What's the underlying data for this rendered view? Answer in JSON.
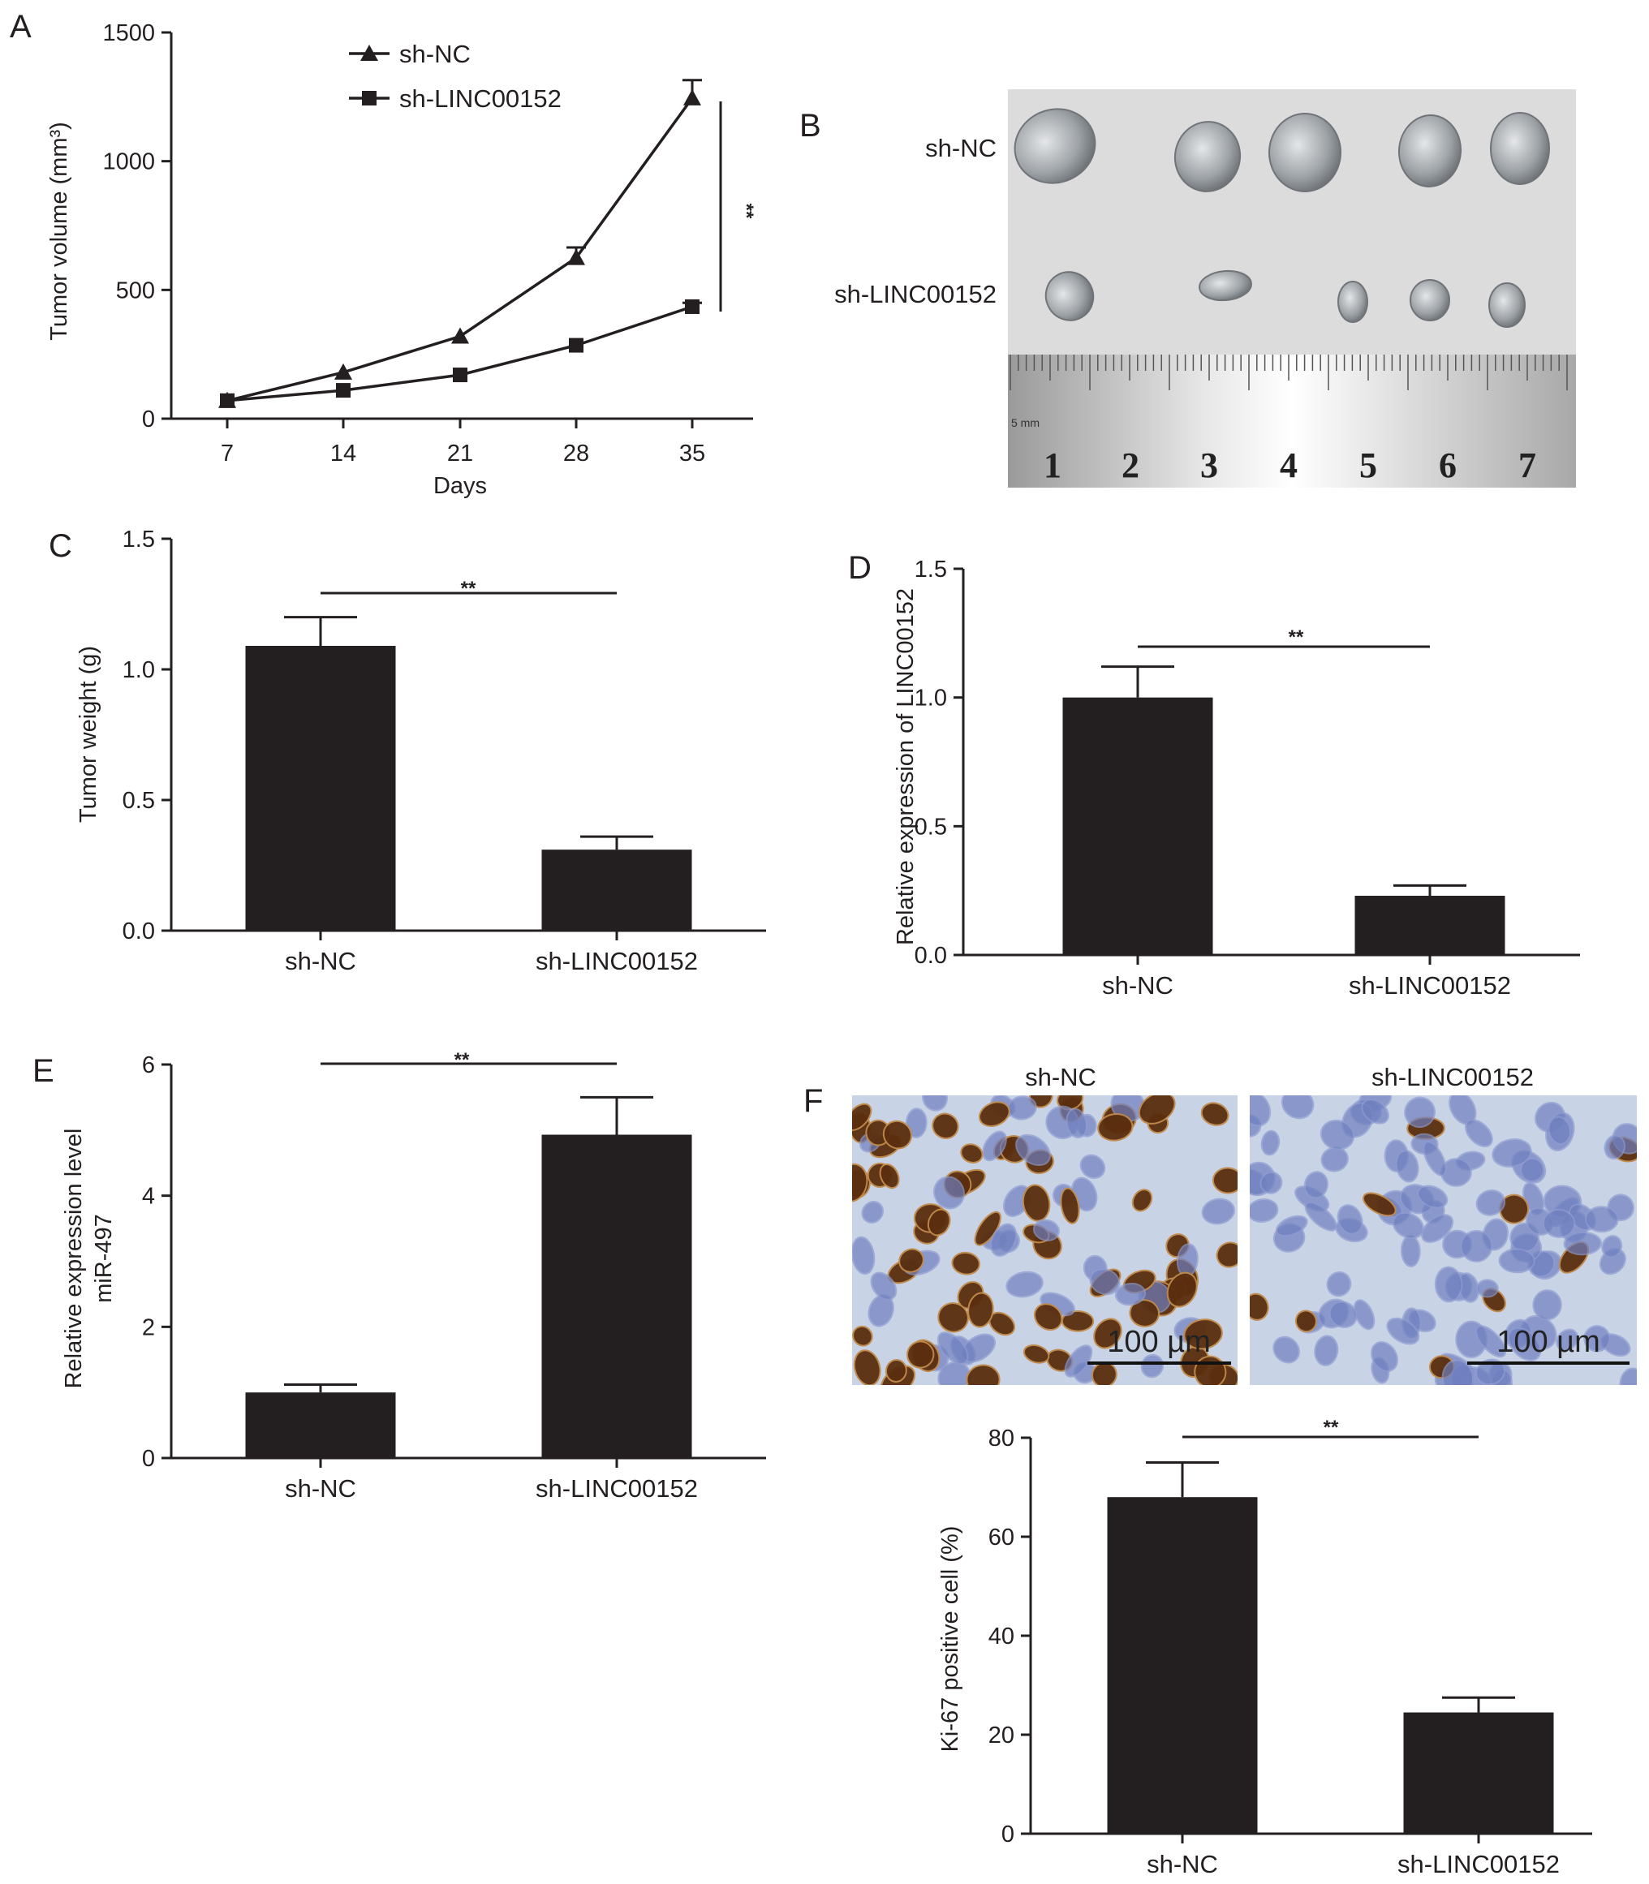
{
  "panels": {
    "A": {
      "letter": "A",
      "legend": [
        {
          "label": "sh-NC",
          "marker": "triangle"
        },
        {
          "label": "sh-LINC00152",
          "marker": "square"
        }
      ],
      "significance": "**",
      "chart_data": {
        "type": "line",
        "xlabel": "Days",
        "ylabel": "Tumor volume (mm³)",
        "x": [
          7,
          14,
          21,
          28,
          35
        ],
        "xticks": [
          "7",
          "14",
          "21",
          "28",
          "35"
        ],
        "ylim": [
          0,
          1500
        ],
        "yticks": [
          0,
          500,
          1000,
          1500
        ],
        "series": [
          {
            "name": "sh-NC",
            "marker": "triangle",
            "values": [
              70,
              180,
              320,
              625,
              1245
            ],
            "errors": [
              0,
              0,
              0,
              40,
              70
            ]
          },
          {
            "name": "sh-LINC00152",
            "marker": "square",
            "values": [
              70,
              110,
              170,
              285,
              435
            ],
            "errors": [
              0,
              0,
              0,
              0,
              15
            ]
          }
        ]
      }
    },
    "B": {
      "letter": "B",
      "rows": [
        "sh-NC",
        "sh-LINC00152"
      ],
      "ruler_small_label": "5 mm",
      "ruler_numbers": [
        "1",
        "2",
        "3",
        "4",
        "5",
        "6",
        "7"
      ],
      "background_color": "#dcdcdc",
      "tumor_color": "#9fa4a8"
    },
    "C": {
      "letter": "C",
      "significance": "**",
      "chart_data": {
        "type": "bar",
        "categories": [
          "sh-NC",
          "sh-LINC00152"
        ],
        "values": [
          1.09,
          0.31
        ],
        "errors": [
          0.11,
          0.05
        ],
        "ylabel": "Tumor weight (g)",
        "xlabel": "",
        "ylim": [
          0,
          1.5
        ],
        "yticks": [
          "0.0",
          "0.5",
          "1.0",
          "1.5"
        ]
      }
    },
    "D": {
      "letter": "D",
      "significance": "**",
      "chart_data": {
        "type": "bar",
        "categories": [
          "sh-NC",
          "sh-LINC00152"
        ],
        "values": [
          1.0,
          0.23
        ],
        "errors": [
          0.12,
          0.04
        ],
        "ylabel": "Relative expression of LINC00152",
        "xlabel": "",
        "ylim": [
          0,
          1.5
        ],
        "yticks": [
          "0.0",
          "0.5",
          "1.0",
          "1.5"
        ]
      }
    },
    "E": {
      "letter": "E",
      "significance": "**",
      "chart_data": {
        "type": "bar",
        "categories": [
          "sh-NC",
          "sh-LINC00152"
        ],
        "values": [
          1.0,
          4.93
        ],
        "errors": [
          0.12,
          0.57
        ],
        "ylabel": [
          "Relative expression level",
          "miR-497"
        ],
        "xlabel": "",
        "ylim": [
          0,
          6
        ],
        "yticks": [
          "0",
          "2",
          "4",
          "6"
        ]
      }
    },
    "F": {
      "letter": "F",
      "image_titles": [
        "sh-NC",
        "sh-LINC00152"
      ],
      "scale_bar_label": "100 µm",
      "stain_colors": {
        "background": "#c9d3e6",
        "nucleus_blue": "#6f7fbf",
        "nucleus_brown": "#5a2e0e"
      },
      "significance": "**",
      "chart_data": {
        "type": "bar",
        "categories": [
          "sh-NC",
          "sh-LINC00152"
        ],
        "values": [
          68,
          24.5
        ],
        "errors": [
          7,
          3
        ],
        "ylabel": "Ki-67 positive cell (%)",
        "xlabel": "",
        "ylim": [
          0,
          80
        ],
        "yticks": [
          "0",
          "20",
          "40",
          "60",
          "80"
        ]
      }
    }
  }
}
